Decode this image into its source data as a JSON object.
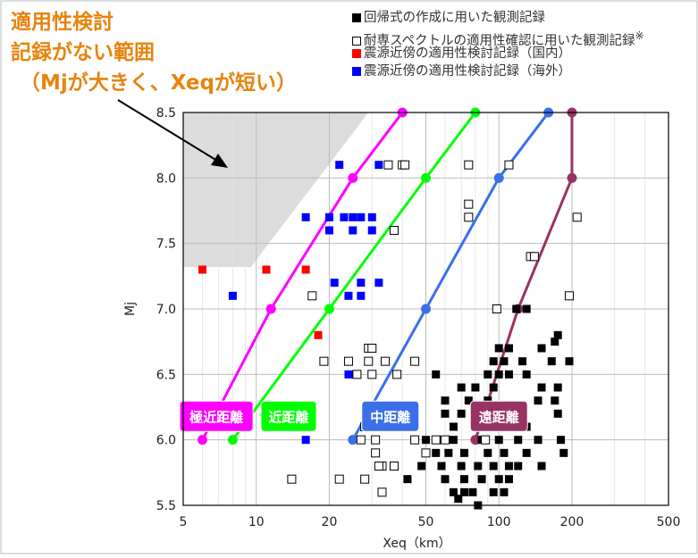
{
  "annotation": {
    "line1": "適用性検討",
    "line2": "記録がない範囲",
    "line3": "（Mjが大きく、Xeqが短い）",
    "color": "#e8830e"
  },
  "legend": [
    {
      "label": "回帰式の作成に用いた観測記録",
      "fill": "#000000",
      "stroke": "#000000",
      "suffix": ""
    },
    {
      "label": "耐専スペクトルの適用性確認に用いた観測記録",
      "fill": "#ffffff",
      "stroke": "#000000",
      "suffix": "※"
    },
    {
      "label": "震源近傍の適用性検討記録（国内）",
      "fill": "#ff0000",
      "stroke": "#ff0000",
      "suffix": ""
    },
    {
      "label": "震源近傍の適用性検討記録（海外）",
      "fill": "#0000ff",
      "stroke": "#0000ff",
      "suffix": ""
    }
  ],
  "chart_data": {
    "type": "scatter",
    "xlabel": "Xeq（km）",
    "ylabel": "Mj",
    "xscale": "log",
    "xlim": [
      5,
      500
    ],
    "ylim": [
      5.5,
      8.5
    ],
    "xticks": [
      5,
      10,
      20,
      50,
      100,
      200,
      500
    ],
    "xtick_labels": [
      "5",
      "10",
      "20",
      "50",
      "100",
      "200",
      "500"
    ],
    "yticks": [
      5.5,
      6.0,
      6.5,
      7.0,
      7.5,
      8.0,
      8.5
    ],
    "ytick_labels": [
      "5.5",
      "6.0",
      "6.5",
      "7.0",
      "7.5",
      "8.0",
      "8.5"
    ],
    "grid": true,
    "shaded_region": {
      "description": "適用性検討記録がない範囲",
      "color": "#dcdcdc",
      "polygon": [
        [
          5,
          8.5
        ],
        [
          29,
          8.5
        ],
        [
          9.5,
          7.32
        ],
        [
          5,
          7.32
        ]
      ]
    },
    "distance_lines": [
      {
        "name": "極近距離",
        "color": "#ff00ff",
        "points": [
          [
            6,
            6.0
          ],
          [
            11.5,
            7.0
          ],
          [
            25,
            8.0
          ],
          [
            40,
            8.5
          ]
        ]
      },
      {
        "name": "近距離",
        "color": "#00ff00",
        "points": [
          [
            8,
            6.0
          ],
          [
            20,
            7.0
          ],
          [
            50,
            8.0
          ],
          [
            80,
            8.5
          ]
        ]
      },
      {
        "name": "中距離",
        "color": "#3a6fe8",
        "points": [
          [
            25,
            6.0
          ],
          [
            50,
            7.0
          ],
          [
            100,
            8.0
          ],
          [
            160,
            8.5
          ]
        ]
      },
      {
        "name": "遠距離",
        "color": "#993366",
        "points": [
          [
            80,
            6.0
          ],
          [
            120,
            7.0
          ],
          [
            200,
            8.0
          ],
          [
            200,
            8.5
          ]
        ]
      }
    ],
    "series": [
      {
        "name": "震源近傍の適用性検討記録（国内）",
        "color": "#ff0000",
        "points": [
          [
            6,
            7.3
          ],
          [
            11,
            7.3
          ],
          [
            16,
            7.3
          ],
          [
            18,
            6.8
          ]
        ]
      },
      {
        "name": "震源近傍の適用性検討記録（海外）",
        "color": "#0000ff",
        "points": [
          [
            8,
            7.1
          ],
          [
            22,
            8.1
          ],
          [
            32,
            8.1
          ],
          [
            16,
            7.7
          ],
          [
            20,
            7.7
          ],
          [
            23,
            7.7
          ],
          [
            25,
            7.7
          ],
          [
            27,
            7.7
          ],
          [
            30,
            7.7
          ],
          [
            20,
            7.6
          ],
          [
            25,
            7.6
          ],
          [
            30,
            7.6
          ],
          [
            21,
            7.2
          ],
          [
            27,
            7.2
          ],
          [
            32,
            7.2
          ],
          [
            24,
            7.1
          ],
          [
            27,
            7.1
          ],
          [
            24,
            6.5
          ],
          [
            16,
            6.0
          ]
        ]
      },
      {
        "name": "回帰式の作成に用いた観測記録",
        "color": "#000000",
        "points": [
          [
            100,
            6.7
          ],
          [
            110,
            6.7
          ],
          [
            150,
            6.7
          ],
          [
            95,
            6.6
          ],
          [
            105,
            6.6
          ],
          [
            125,
            6.6
          ],
          [
            165,
            6.6
          ],
          [
            195,
            6.6
          ],
          [
            90,
            6.5
          ],
          [
            100,
            6.5
          ],
          [
            110,
            6.5
          ],
          [
            130,
            6.5
          ],
          [
            55,
            6.5
          ],
          [
            70,
            6.4
          ],
          [
            80,
            6.4
          ],
          [
            95,
            6.4
          ],
          [
            150,
            6.4
          ],
          [
            175,
            6.4
          ],
          [
            60,
            6.3
          ],
          [
            75,
            6.3
          ],
          [
            90,
            6.3
          ],
          [
            145,
            6.3
          ],
          [
            170,
            6.3
          ],
          [
            60,
            6.2
          ],
          [
            70,
            6.2
          ],
          [
            80,
            6.2
          ],
          [
            95,
            6.2
          ],
          [
            115,
            6.2
          ],
          [
            175,
            6.2
          ],
          [
            65,
            6.1
          ],
          [
            80,
            6.1
          ],
          [
            105,
            6.1
          ],
          [
            130,
            6.1
          ],
          [
            50,
            6.0
          ],
          [
            58,
            6.0
          ],
          [
            65,
            6.0
          ],
          [
            85,
            6.0
          ],
          [
            100,
            6.0
          ],
          [
            120,
            6.0
          ],
          [
            145,
            6.0
          ],
          [
            180,
            6.0
          ],
          [
            55,
            5.9
          ],
          [
            62,
            5.9
          ],
          [
            72,
            5.9
          ],
          [
            90,
            5.9
          ],
          [
            105,
            5.9
          ],
          [
            130,
            5.9
          ],
          [
            185,
            5.9
          ],
          [
            48,
            5.8
          ],
          [
            58,
            5.8
          ],
          [
            70,
            5.8
          ],
          [
            82,
            5.8
          ],
          [
            95,
            5.8
          ],
          [
            110,
            5.8
          ],
          [
            120,
            5.8
          ],
          [
            150,
            5.8
          ],
          [
            60,
            5.7
          ],
          [
            72,
            5.7
          ],
          [
            85,
            5.7
          ],
          [
            100,
            5.7
          ],
          [
            110,
            5.7
          ],
          [
            42,
            5.7
          ],
          [
            65,
            5.6
          ],
          [
            72,
            5.6
          ],
          [
            78,
            5.6
          ],
          [
            95,
            5.6
          ],
          [
            105,
            5.6
          ],
          [
            68,
            5.55
          ],
          [
            82,
            5.5
          ],
          [
            118,
            7.0
          ],
          [
            130,
            7.0
          ],
          [
            175,
            6.8
          ],
          [
            170,
            6.75
          ]
        ]
      },
      {
        "name": "耐専スペクトルの適用性確認に用いた観測記録",
        "color": "#000000",
        "hollow": true,
        "points": [
          [
            35,
            8.1
          ],
          [
            40,
            8.1
          ],
          [
            41,
            8.1
          ],
          [
            75,
            8.1
          ],
          [
            110,
            8.1
          ],
          [
            75,
            7.8
          ],
          [
            75,
            7.7
          ],
          [
            210,
            7.7
          ],
          [
            37,
            7.6
          ],
          [
            135,
            7.4
          ],
          [
            140,
            7.4
          ],
          [
            17,
            7.1
          ],
          [
            195,
            7.1
          ],
          [
            98,
            7.0
          ],
          [
            29,
            6.7
          ],
          [
            30,
            6.7
          ],
          [
            19,
            6.6
          ],
          [
            24,
            6.6
          ],
          [
            29,
            6.6
          ],
          [
            34,
            6.6
          ],
          [
            45,
            6.6
          ],
          [
            26,
            6.5
          ],
          [
            30,
            6.5
          ],
          [
            38,
            6.5
          ],
          [
            28,
            6.1
          ],
          [
            27,
            6.0
          ],
          [
            31,
            6.0
          ],
          [
            55,
            6.0
          ],
          [
            60,
            6.0
          ],
          [
            88,
            6.0
          ],
          [
            31,
            5.9
          ],
          [
            37,
            5.8
          ],
          [
            33,
            5.8
          ],
          [
            32,
            5.8
          ],
          [
            28,
            5.7
          ],
          [
            22,
            5.7
          ],
          [
            14,
            5.7
          ],
          [
            33,
            5.6
          ],
          [
            50,
            5.9
          ],
          [
            45,
            6.0
          ]
        ]
      }
    ]
  }
}
